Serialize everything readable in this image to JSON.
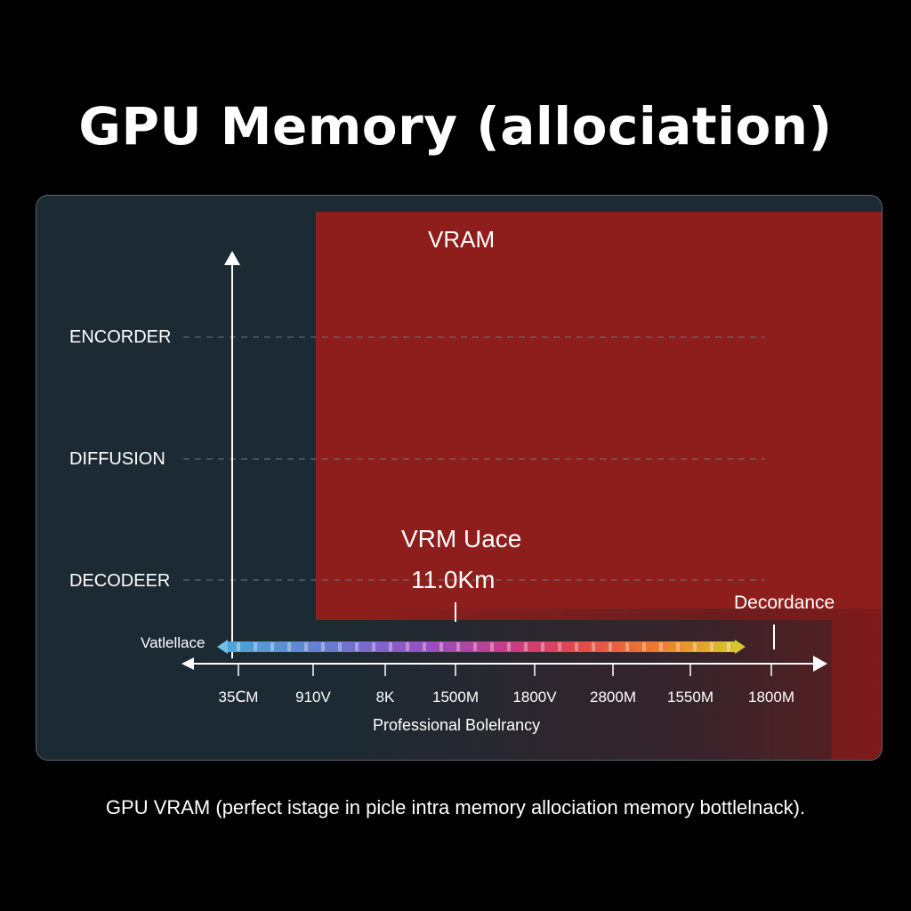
{
  "title": "GPU Memory (allociation)",
  "caption": "GPU VRAM (perfect istage in picle intra memory allociation memory bottlelnack).",
  "colors": {
    "background": "#000000",
    "panel": "#1c2a33",
    "vram_block": "#8e1e1c",
    "gradient_bar": [
      "#4aa8d8",
      "#7b5cc9",
      "#c23d8c",
      "#e0424f",
      "#f0782b",
      "#d8c42a"
    ]
  },
  "chart_data": {
    "type": "bar",
    "title": "GPU Memory (allociation)",
    "categories": [
      "ENCORDER",
      "DIFFUSION",
      "DECODEER"
    ],
    "x_tick_labels": [
      "35ⅭM",
      "910V",
      "8K",
      "1500M",
      "1800V",
      "2800M",
      "1550M",
      "1800M"
    ],
    "xlabel": "Professional Bolelrancy",
    "ylabel": "",
    "region_label": "VRAM",
    "annotation": {
      "label": "VRM Uace",
      "value": "11.0Km"
    },
    "right_marker_label": "Decordance",
    "scale_bar_label": "Vatlellace",
    "grid": "dashed horizontal at categories",
    "legend": "none"
  }
}
